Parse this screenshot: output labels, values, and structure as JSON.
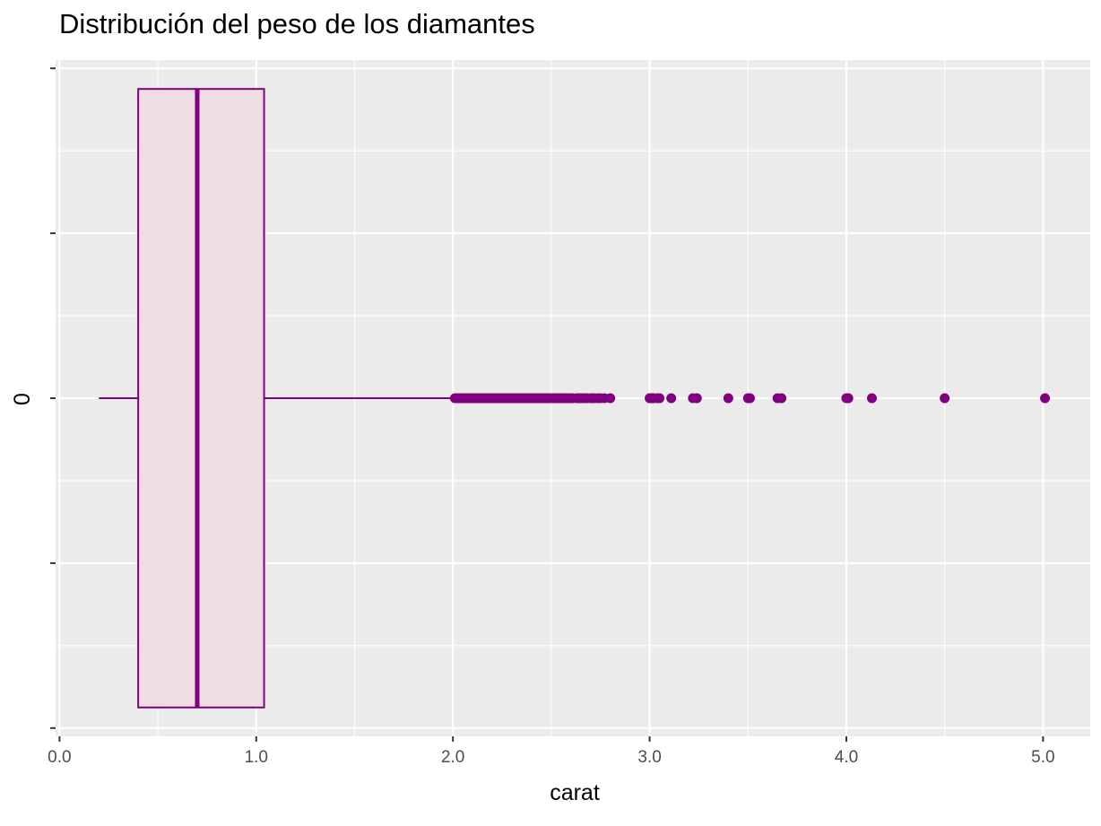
{
  "chart_data": {
    "type": "boxplot",
    "orientation": "horizontal",
    "title": "Distribución del peso de los diamantes",
    "xlabel": "carat",
    "ylabel": "0",
    "xlim": [
      -0.02,
      5.24
    ],
    "x_ticks": [
      0.0,
      1.0,
      2.0,
      3.0,
      4.0,
      5.0
    ],
    "x_tick_labels": [
      "0.0",
      "1.0",
      "2.0",
      "3.0",
      "4.0",
      "5.0"
    ],
    "ylim": [
      -0.41,
      0.41
    ],
    "y_ticks": [
      -0.4,
      -0.2,
      0.0,
      0.2,
      0.4
    ],
    "grid": true,
    "colors": {
      "panel_background": "#EBEBEB",
      "grid_major": "#FFFFFF",
      "box_fill": "#F0DDE2",
      "box_stroke": "#800080",
      "outlier": "#800080"
    },
    "box": {
      "min": 0.2,
      "q1": 0.4,
      "median": 0.7,
      "q3": 1.04,
      "whisker_high": 2.0,
      "half_width": 0.375
    },
    "outliers": [
      2.01,
      2.02,
      2.03,
      2.04,
      2.05,
      2.06,
      2.07,
      2.08,
      2.09,
      2.1,
      2.11,
      2.12,
      2.13,
      2.14,
      2.15,
      2.16,
      2.17,
      2.18,
      2.19,
      2.2,
      2.21,
      2.22,
      2.23,
      2.24,
      2.25,
      2.26,
      2.27,
      2.28,
      2.29,
      2.3,
      2.31,
      2.32,
      2.33,
      2.34,
      2.35,
      2.36,
      2.37,
      2.38,
      2.39,
      2.4,
      2.41,
      2.42,
      2.43,
      2.44,
      2.45,
      2.46,
      2.47,
      2.48,
      2.49,
      2.5,
      2.51,
      2.52,
      2.53,
      2.54,
      2.55,
      2.56,
      2.57,
      2.58,
      2.59,
      2.6,
      2.61,
      2.63,
      2.64,
      2.65,
      2.66,
      2.67,
      2.68,
      2.7,
      2.71,
      2.72,
      2.74,
      2.75,
      2.77,
      2.8,
      3.0,
      3.01,
      3.02,
      3.04,
      3.05,
      3.11,
      3.22,
      3.24,
      3.4,
      3.5,
      3.51,
      3.65,
      3.67,
      4.0,
      4.01,
      4.13,
      4.5,
      5.01
    ]
  }
}
